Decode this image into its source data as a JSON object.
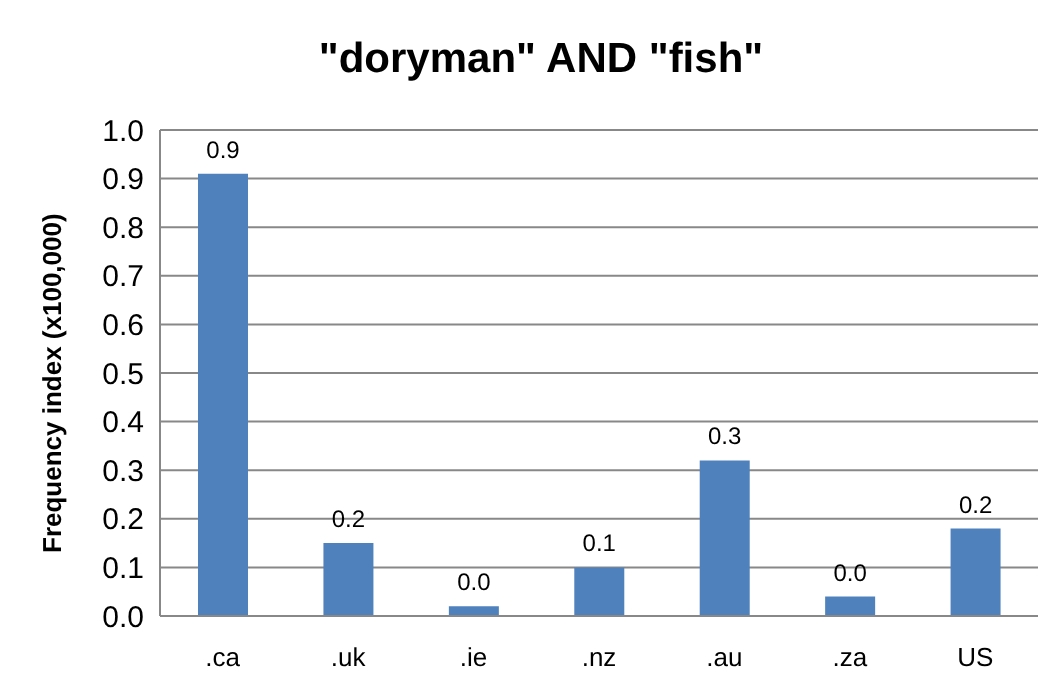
{
  "chart_data": {
    "type": "bar",
    "title": "\"doryman\" AND \"fish\"",
    "ylabel": "Frequency index (x100,000)",
    "categories": [
      ".ca",
      ".uk",
      ".ie",
      ".nz",
      ".au",
      ".za",
      "US"
    ],
    "values": [
      0.91,
      0.15,
      0.02,
      0.1,
      0.32,
      0.04,
      0.18
    ],
    "value_labels": [
      "0.9",
      "0.2",
      "0.0",
      "0.1",
      "0.3",
      "0.0",
      "0.2"
    ],
    "color": "#4f81bd",
    "ylim": [
      0,
      1.0
    ],
    "yticks": [
      {
        "value": 0,
        "label": "0.0"
      },
      {
        "value": 0.1,
        "label": "0.1"
      },
      {
        "value": 0.2,
        "label": "0.2"
      },
      {
        "value": 0.3,
        "label": "0.3"
      },
      {
        "value": 0.4,
        "label": "0.4"
      },
      {
        "value": 0.5,
        "label": "0.5"
      },
      {
        "value": 0.6,
        "label": "0.6"
      },
      {
        "value": 0.7,
        "label": "0.7"
      },
      {
        "value": 0.8,
        "label": "0.8"
      },
      {
        "value": 0.9,
        "label": "0.9"
      },
      {
        "value": 1.0,
        "label": "1.0"
      }
    ],
    "grid": "y",
    "legend": false
  }
}
